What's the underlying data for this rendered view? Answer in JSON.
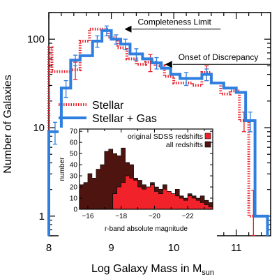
{
  "chart_data": [
    {
      "type": "histogram",
      "xlabel": "Log Galaxy Mass in M",
      "xlabel_sub": "sun",
      "ylabel": "Number of Galaxies",
      "xlim": [
        8,
        11.55
      ],
      "ylim": [
        0.6,
        200
      ],
      "yscale": "log",
      "xticks": [
        8,
        9,
        10,
        11
      ],
      "xtick_labels": [
        "8",
        "9",
        "10",
        "11"
      ],
      "yticks": [
        1,
        10,
        100
      ],
      "ytick_labels": [
        "1",
        "10",
        "100"
      ],
      "series": [
        {
          "name": "Stellar",
          "color": "#e8202a",
          "style": "dotted-step",
          "edges": [
            8.0,
            8.05,
            8.35,
            8.5,
            8.65,
            8.8,
            8.95,
            9.1,
            9.25,
            9.4,
            9.55,
            9.7,
            9.85,
            10.0,
            10.15,
            10.3,
            10.45,
            10.6,
            10.75,
            10.9,
            11.05,
            11.2,
            11.35,
            11.5
          ],
          "values": [
            80,
            43,
            45,
            95,
            130,
            130,
            105,
            80,
            60,
            52,
            55,
            50,
            38,
            32,
            32,
            30,
            42,
            32,
            24,
            26,
            12,
            1,
            1
          ],
          "errors": [
            null,
            null,
            10,
            null,
            null,
            null,
            null,
            null,
            null,
            null,
            12,
            null,
            null,
            null,
            null,
            null,
            8,
            null,
            null,
            null,
            3,
            0.95,
            null
          ]
        },
        {
          "name": "Stellar + Gas",
          "color": "#2f7fe0",
          "style": "solid-step",
          "edges": [
            8.0,
            8.2,
            8.35,
            8.5,
            8.7,
            8.85,
            9.0,
            9.15,
            9.3,
            9.5,
            9.65,
            9.8,
            9.95,
            10.1,
            10.3,
            10.45,
            10.6,
            10.8,
            11.0,
            11.15,
            11.3,
            11.5
          ],
          "values": [
            9,
            28,
            58,
            65,
            95,
            125,
            100,
            88,
            68,
            60,
            54,
            47,
            40,
            36,
            36,
            40,
            32,
            28,
            25,
            12,
            1
          ],
          "errors": [
            2.5,
            6,
            8,
            null,
            14,
            16,
            12,
            12,
            10,
            null,
            8,
            null,
            null,
            6,
            null,
            6,
            null,
            null,
            null,
            3,
            null
          ]
        }
      ],
      "legend": {
        "placement": "center-left",
        "entries": [
          "Stellar",
          "Stellar + Gas"
        ]
      },
      "annotations": [
        {
          "text": "Completeness Limit",
          "x": 9.2,
          "y": 130
        },
        {
          "text": "Onset of Discrepancy",
          "x": 9.85,
          "y": 52
        }
      ]
    },
    {
      "type": "bar",
      "xlabel": "r-band absolute magnitude",
      "ylabel": "number",
      "xlim": [
        -15.5,
        -23.5
      ],
      "ylim": [
        0,
        72
      ],
      "xticks": [
        -16,
        -18,
        -20,
        -22
      ],
      "xtick_labels": [
        "−16",
        "−18",
        "−20",
        "−22"
      ],
      "yticks": [
        0,
        10,
        20,
        30,
        40,
        50,
        60,
        70
      ],
      "ytick_labels": [
        "0",
        "10",
        "20",
        "30",
        "40",
        "50",
        "60",
        "70"
      ],
      "bin_width": 0.25,
      "bin_start": -15.5,
      "series": [
        {
          "name": "all redshifts",
          "color": "#4d1410",
          "values": [
            22,
            24,
            32,
            28,
            36,
            40,
            52,
            54,
            50,
            48,
            55,
            42,
            40,
            28,
            26,
            22,
            20,
            24,
            20,
            18,
            22,
            16,
            14,
            18,
            12,
            10,
            14,
            12,
            10,
            12,
            8,
            6
          ]
        },
        {
          "name": "original SDSS redshifts",
          "color": "#f2222b",
          "values": [
            0,
            0,
            0,
            0,
            0,
            0,
            0,
            0,
            14,
            20,
            24,
            30,
            28,
            26,
            20,
            18,
            20,
            22,
            16,
            14,
            18,
            16,
            14,
            12,
            10,
            8,
            12,
            10,
            8,
            6,
            4,
            2
          ]
        }
      ],
      "legend": {
        "placement": "top-right",
        "entries": [
          "original SDSS redshifts",
          "all redshifts"
        ]
      }
    }
  ]
}
